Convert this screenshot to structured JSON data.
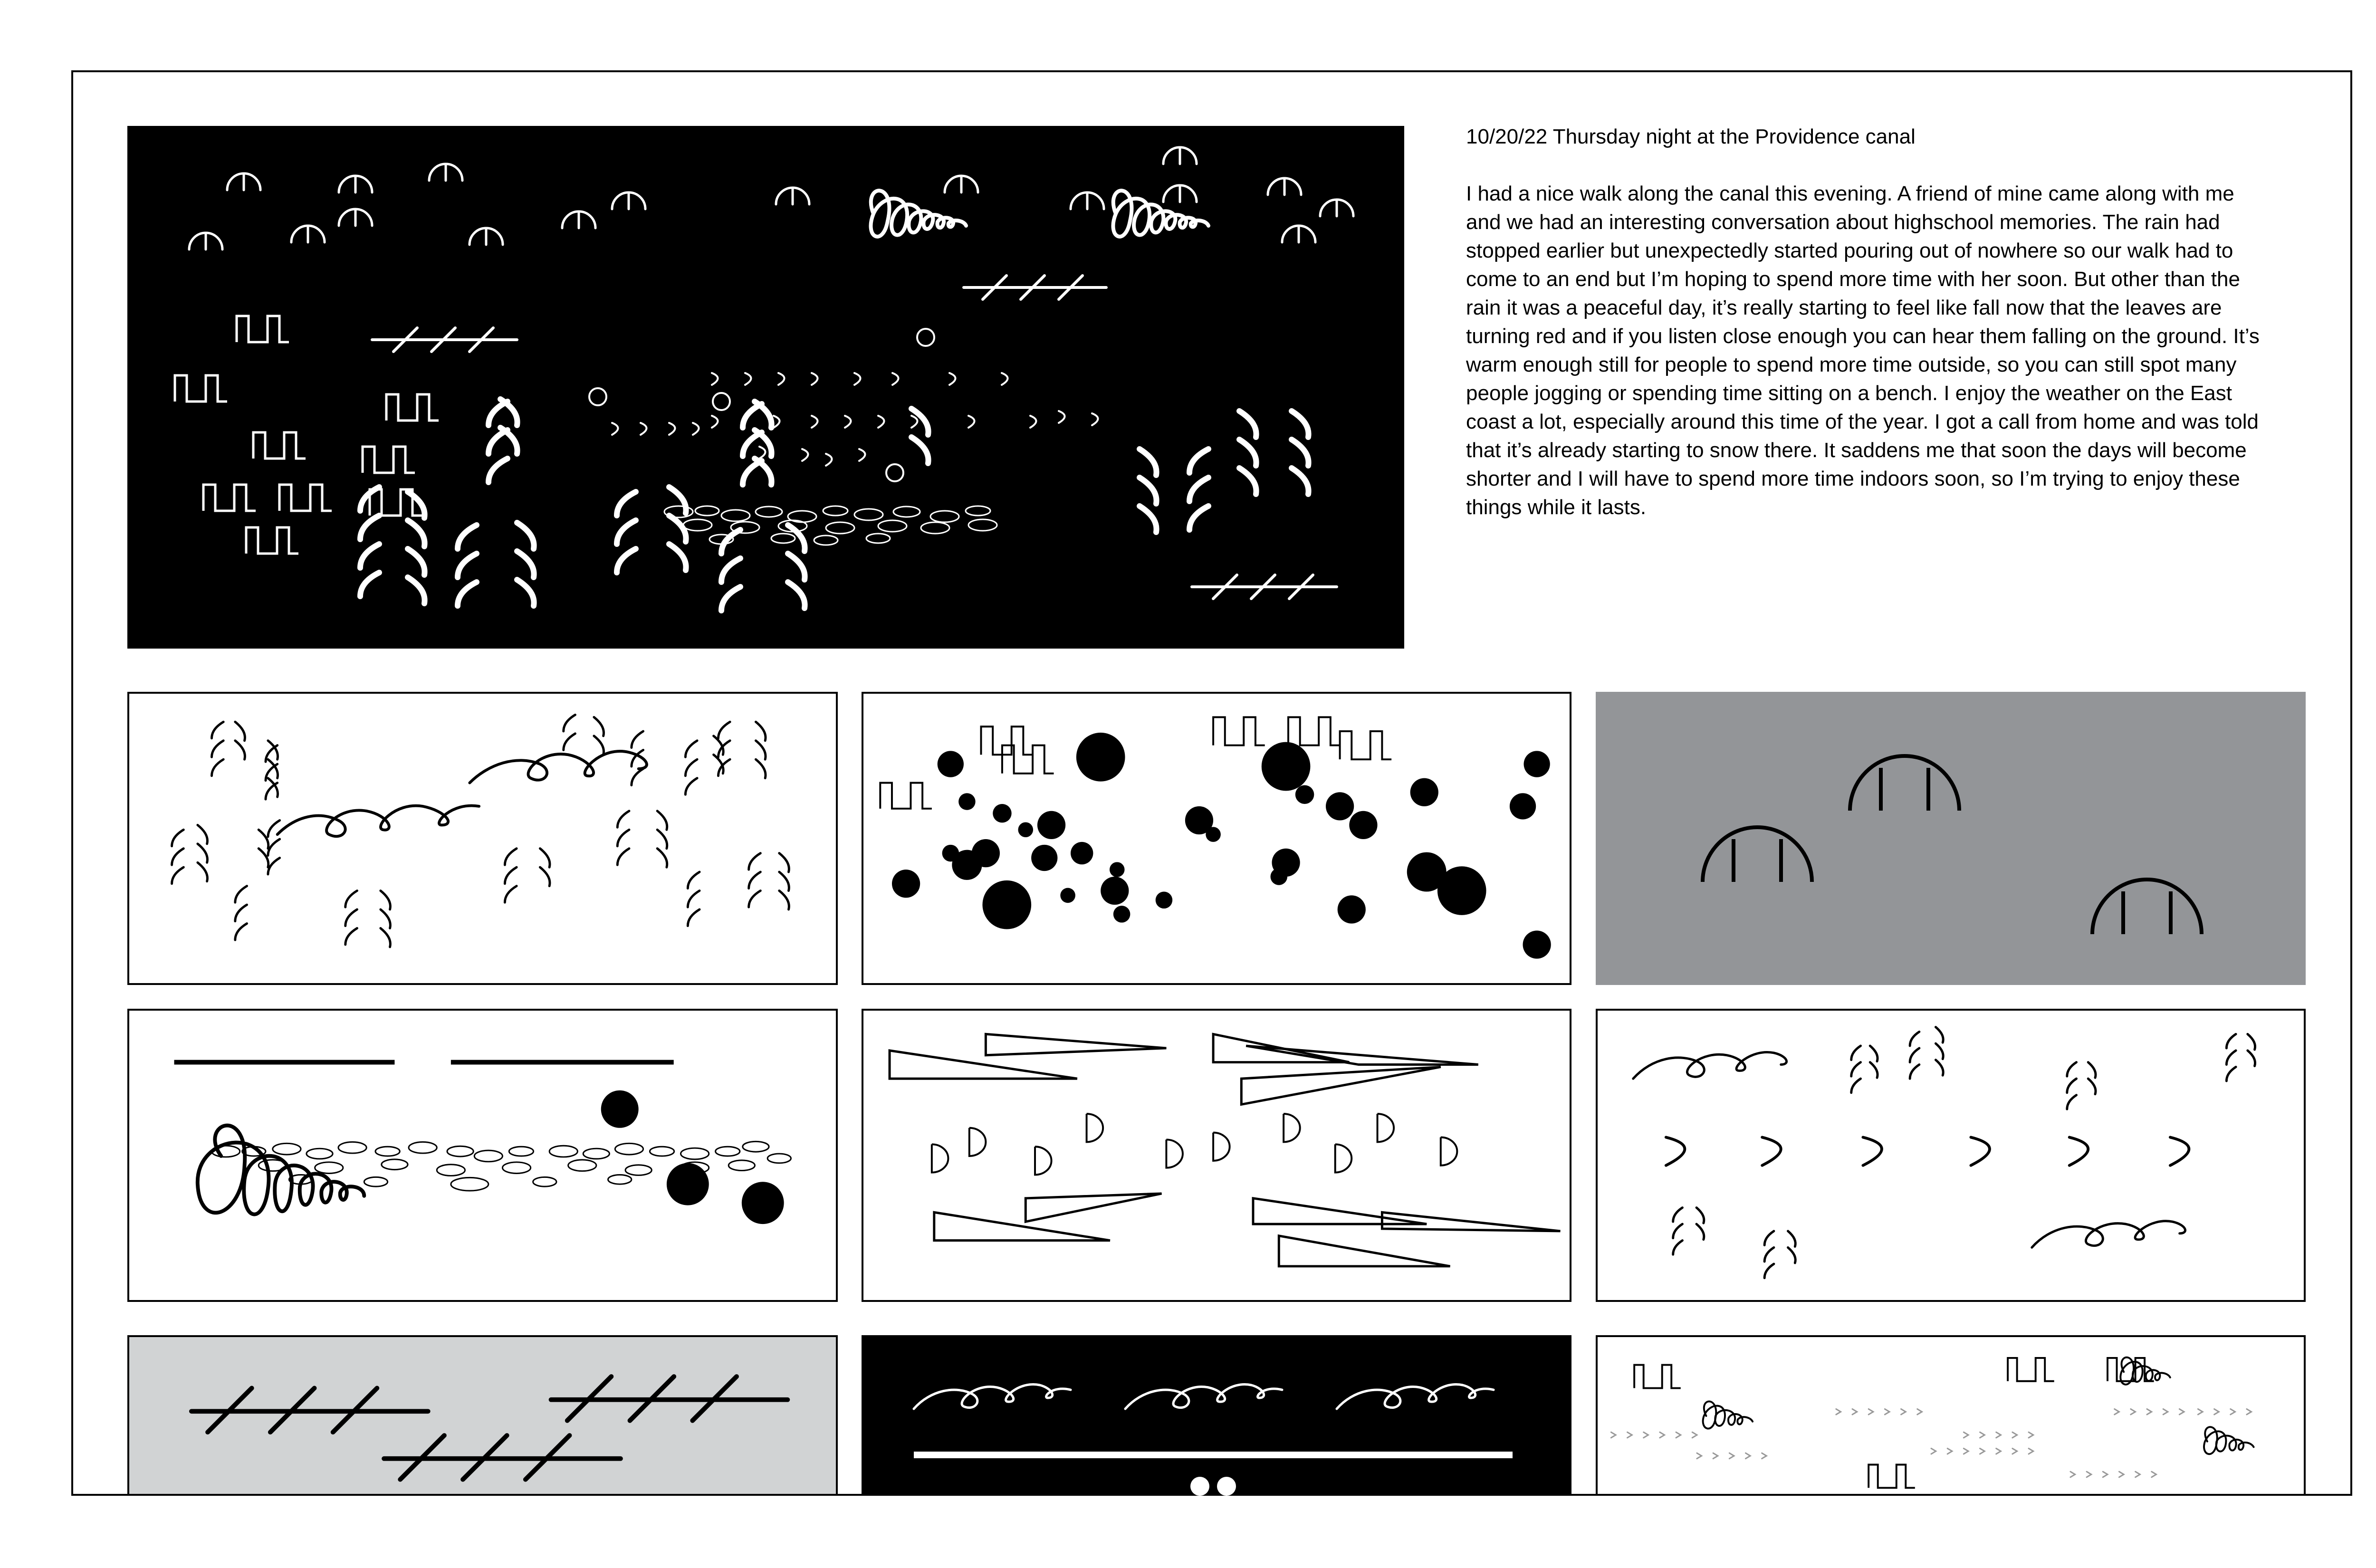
{
  "journal": {
    "heading": "10/20/22 Thursday night at the Providence canal",
    "body": "I had a nice walk along the canal this evening. A friend of mine came along with me and we had an interesting conversation about highschool memories. The rain had stopped earlier but unexpectedly started pouring out of nowhere so our walk had to come to an end but I’m hoping to spend more time with her soon. But other than the rain it was a peaceful day, it’s really starting to feel like fall now that the leaves are turning red and if you listen close enough you can hear them falling on the ground. It’s warm enough still for people to spend more time outside, so you can still spot many people jogging or spending time sitting on a bench. I enjoy the weather on the East coast a lot, especially around this time of the year. I got a call from home and was told that it’s already starting to snow there. It saddens me that soon the days will become shorter and I will have to spend more time indoors soon, so I’m trying to enjoy these things while it lasts."
  },
  "colors": {
    "ink": "#000000",
    "paper": "#ffffff",
    "grey": "#939598",
    "light_grey": "#d1d3d4"
  },
  "panels": [
    {
      "id": "hero",
      "background": "black",
      "motifs": [
        "umbrella-arch",
        "spiral-scribble",
        "hatched-line",
        "step-wave",
        "small-circle",
        "crescent",
        "leaf-fern",
        "ripple-ellipses"
      ]
    },
    {
      "id": "row1-left",
      "background": "white",
      "motifs": [
        "leaf-fern",
        "loop-wave"
      ]
    },
    {
      "id": "row1-middle",
      "background": "white",
      "motifs": [
        "dot",
        "step-wave"
      ]
    },
    {
      "id": "row1-right",
      "background": "grey",
      "motifs": [
        "umbrella-arch"
      ]
    },
    {
      "id": "row2-left",
      "background": "white",
      "motifs": [
        "horizontal-bar",
        "spiral-scribble",
        "ripple-ellipses",
        "dot"
      ]
    },
    {
      "id": "row2-middle",
      "background": "white",
      "motifs": [
        "wedge-triangle",
        "half-disc"
      ]
    },
    {
      "id": "row2-right",
      "background": "white",
      "motifs": [
        "loop-wave",
        "leaf-fern",
        "crescent"
      ]
    },
    {
      "id": "row3-left",
      "background": "light grey",
      "motifs": [
        "hatched-line"
      ]
    },
    {
      "id": "row3-middle",
      "background": "black",
      "motifs": [
        "loop-wave",
        "horizontal-bar",
        "dot"
      ]
    },
    {
      "id": "row3-right",
      "background": "white",
      "motifs": [
        "step-wave",
        "spiral-scribble",
        "chevrons"
      ]
    }
  ]
}
